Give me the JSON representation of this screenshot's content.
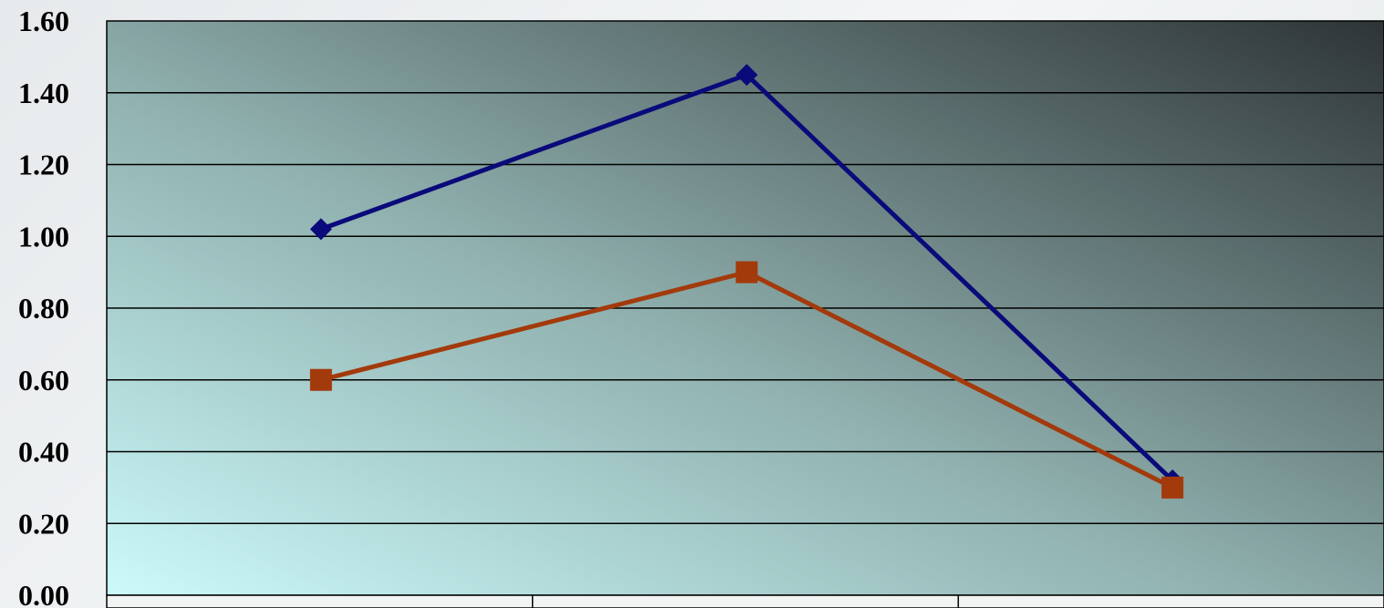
{
  "chart_data": {
    "type": "line",
    "categories": [
      "",
      "",
      ""
    ],
    "series": [
      {
        "values": [
          1.02,
          1.45,
          0.32
        ],
        "color": "#0a0a7a",
        "marker": "diamond"
      },
      {
        "values": [
          0.6,
          0.9,
          0.3
        ],
        "color": "#a33a0c",
        "marker": "square"
      }
    ],
    "title": "",
    "xlabel": "",
    "ylabel": "",
    "ylim": [
      0,
      1.6
    ],
    "yticks": [
      "0.00",
      "0.20",
      "0.40",
      "0.60",
      "0.80",
      "1.00",
      "1.20",
      "1.40",
      "1.60"
    ],
    "grid": true,
    "legend": "none",
    "plot_background": {
      "from": "#ccfafa",
      "to": "#2e3436"
    }
  }
}
